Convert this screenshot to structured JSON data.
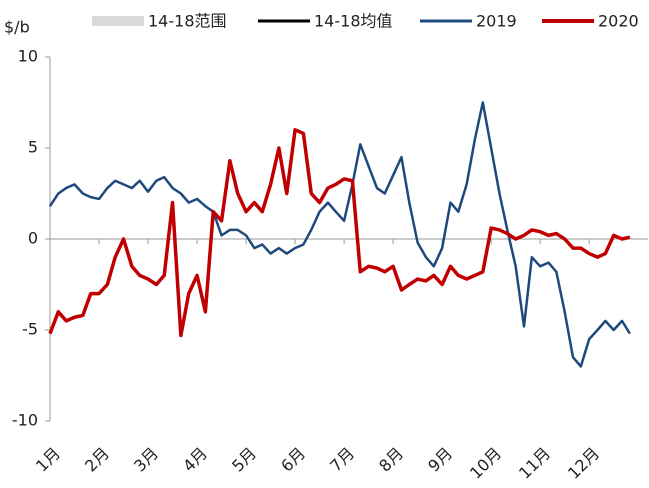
{
  "chart_data": {
    "type": "line",
    "ylabel": "$/b",
    "ylim": [
      -10,
      10
    ],
    "yticks": [
      -10,
      -5,
      0,
      5,
      10
    ],
    "xlim": [
      0,
      12.2
    ],
    "xticks": [
      {
        "value": 0,
        "label": "1月"
      },
      {
        "value": 1,
        "label": "2月"
      },
      {
        "value": 2,
        "label": "3月"
      },
      {
        "value": 3,
        "label": "4月"
      },
      {
        "value": 4,
        "label": "5月"
      },
      {
        "value": 5,
        "label": "6月"
      },
      {
        "value": 6,
        "label": "7月"
      },
      {
        "value": 7,
        "label": "8月"
      },
      {
        "value": 8,
        "label": "9月"
      },
      {
        "value": 9,
        "label": "10月"
      },
      {
        "value": 10,
        "label": "11月"
      },
      {
        "value": 11,
        "label": "12月"
      }
    ],
    "x": [
      0,
      0.17,
      0.33,
      0.5,
      0.67,
      0.83,
      1,
      1.17,
      1.33,
      1.5,
      1.67,
      1.83,
      2,
      2.17,
      2.33,
      2.5,
      2.67,
      2.83,
      3,
      3.17,
      3.33,
      3.5,
      3.67,
      3.83,
      4,
      4.17,
      4.33,
      4.5,
      4.67,
      4.83,
      5,
      5.17,
      5.33,
      5.5,
      5.67,
      5.83,
      6,
      6.17,
      6.33,
      6.5,
      6.67,
      6.83,
      7,
      7.17,
      7.33,
      7.5,
      7.67,
      7.83,
      8,
      8.17,
      8.33,
      8.5,
      8.67,
      8.83,
      9,
      9.17,
      9.33,
      9.5,
      9.67,
      9.83,
      10,
      10.17,
      10.33,
      10.5,
      10.67,
      10.83,
      11,
      11.17,
      11.33,
      11.5,
      11.67,
      11.83
    ],
    "series": [
      {
        "name": "14-18范围",
        "color": "#d9d9d9",
        "values": [
          null,
          null,
          null,
          null,
          null,
          null,
          null,
          null,
          null,
          null,
          null,
          null,
          null,
          null,
          null,
          null,
          null,
          null,
          null,
          null,
          null,
          null,
          null,
          null,
          null,
          null,
          null,
          null,
          null,
          null,
          null,
          null,
          null,
          null,
          null,
          null,
          null,
          null,
          null,
          null,
          null,
          null,
          null,
          null,
          null,
          null,
          null,
          null,
          null,
          null,
          null,
          null,
          null,
          null,
          null,
          null,
          null,
          null,
          null,
          null,
          null,
          null,
          null,
          null,
          null,
          null,
          null,
          null,
          null,
          null,
          null,
          null
        ]
      },
      {
        "name": "14-18均值",
        "color": "#000000",
        "values": [
          null,
          null,
          null,
          null,
          null,
          null,
          null,
          null,
          null,
          null,
          null,
          null,
          null,
          null,
          null,
          null,
          null,
          null,
          null,
          null,
          null,
          null,
          null,
          null,
          null,
          null,
          null,
          null,
          null,
          null,
          null,
          null,
          null,
          null,
          null,
          null,
          null,
          null,
          null,
          null,
          null,
          null,
          null,
          null,
          null,
          null,
          null,
          null,
          null,
          null,
          null,
          null,
          null,
          null,
          null,
          null,
          null,
          null,
          null,
          null,
          null,
          null,
          null,
          null,
          null,
          null,
          null,
          null,
          null,
          null,
          null,
          null
        ]
      },
      {
        "name": "2019",
        "color": "#1f497d",
        "values": [
          1.8,
          2.5,
          2.8,
          3.0,
          2.5,
          2.3,
          2.2,
          2.8,
          3.2,
          3.0,
          2.8,
          3.2,
          2.6,
          3.2,
          3.4,
          2.8,
          2.5,
          2.0,
          2.2,
          1.8,
          1.5,
          0.2,
          0.5,
          0.5,
          0.2,
          -0.5,
          -0.3,
          -0.8,
          -0.5,
          -0.8,
          -0.5,
          -0.3,
          0.5,
          1.5,
          2.0,
          1.5,
          1.0,
          3.0,
          5.2,
          4.0,
          2.8,
          2.5,
          3.5,
          4.5,
          2.0,
          -0.2,
          -1.0,
          -1.5,
          -0.5,
          2.0,
          1.5,
          3.0,
          5.5,
          7.5,
          5.0,
          2.5,
          0.5,
          -1.5,
          -4.8,
          -1.0,
          -1.5,
          -1.3,
          -1.8,
          -4.0,
          -6.5,
          -7.0,
          -5.5,
          -5.0,
          -4.5,
          -5.0,
          -4.5,
          -5.2
        ]
      },
      {
        "name": "2020",
        "color": "#c00000",
        "values": [
          -5.2,
          -4.0,
          -4.5,
          -4.3,
          -4.2,
          -3.0,
          -3.0,
          -2.5,
          -1.0,
          0.0,
          -1.5,
          -2.0,
          -2.2,
          -2.5,
          -2.0,
          2.0,
          -5.3,
          -3.0,
          -2.0,
          -4.0,
          1.5,
          1.0,
          4.3,
          2.5,
          1.5,
          2.0,
          1.5,
          3.0,
          5.0,
          2.5,
          6.0,
          5.8,
          2.5,
          2.0,
          2.8,
          3.0,
          3.3,
          3.2,
          -1.8,
          -1.5,
          -1.6,
          -1.8,
          -1.5,
          -2.8,
          -2.5,
          -2.2,
          -2.3,
          -2.0,
          -2.5,
          -1.5,
          -2.0,
          -2.2,
          -2.0,
          -1.8,
          0.6,
          0.5,
          0.3,
          0.0,
          0.2,
          0.5,
          0.4,
          0.2,
          0.3,
          0.0,
          -0.5,
          -0.5,
          -0.8,
          -1.0,
          -0.8,
          0.2,
          0.0,
          0.1
        ]
      }
    ]
  }
}
